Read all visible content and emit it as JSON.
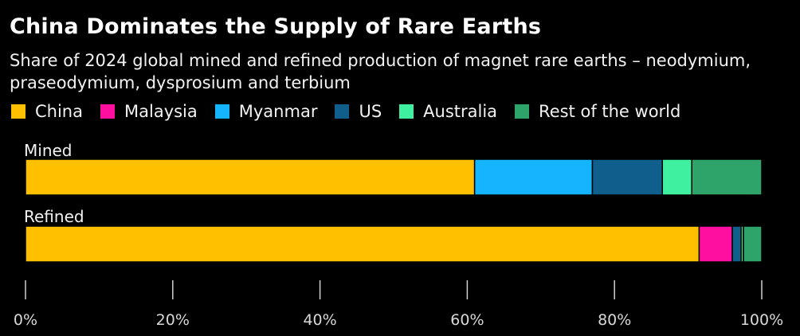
{
  "title": "China Dominates the Supply of Rare Earths",
  "subtitle": "Share of 2024 global mined and refined production of magnet rare earths – neodymium, praseodymium, dysprosium and terbium",
  "legend": [
    {
      "name": "China",
      "color": "#FFC000"
    },
    {
      "name": "Malaysia",
      "color": "#FF0FA0"
    },
    {
      "name": "Myanmar",
      "color": "#15B4FF"
    },
    {
      "name": "US",
      "color": "#0F5E8C"
    },
    {
      "name": "Australia",
      "color": "#3FF0A0"
    },
    {
      "name": "Rest of the world",
      "color": "#2EA36A"
    }
  ],
  "chart_data": {
    "type": "bar",
    "orientation": "horizontal",
    "stacked": true,
    "categories": [
      "Mined",
      "Refined"
    ],
    "series": [
      {
        "name": "China",
        "color": "#FFC000",
        "values": [
          61,
          91.5
        ]
      },
      {
        "name": "Malaysia",
        "color": "#FF0FA0",
        "values": [
          0,
          4.5
        ]
      },
      {
        "name": "Myanmar",
        "color": "#15B4FF",
        "values": [
          16,
          0
        ]
      },
      {
        "name": "US",
        "color": "#0F5E8C",
        "values": [
          9.5,
          1.2
        ]
      },
      {
        "name": "Australia",
        "color": "#3FF0A0",
        "values": [
          4,
          0.3
        ]
      },
      {
        "name": "Rest of the world",
        "color": "#2EA36A",
        "values": [
          9.5,
          2.5
        ]
      }
    ],
    "xticks": [
      0,
      20,
      40,
      60,
      80,
      100
    ],
    "xtick_labels": [
      "0%",
      "20%",
      "40%",
      "60%",
      "80%",
      "100%"
    ],
    "xlim": [
      0,
      100
    ],
    "title": "China Dominates the Supply of Rare Earths",
    "subtitle": "Share of 2024 global mined and refined production of magnet rare earths – neodymium, praseodymium, dysprosium and terbium",
    "grid": false,
    "legend_position": "top-left"
  }
}
